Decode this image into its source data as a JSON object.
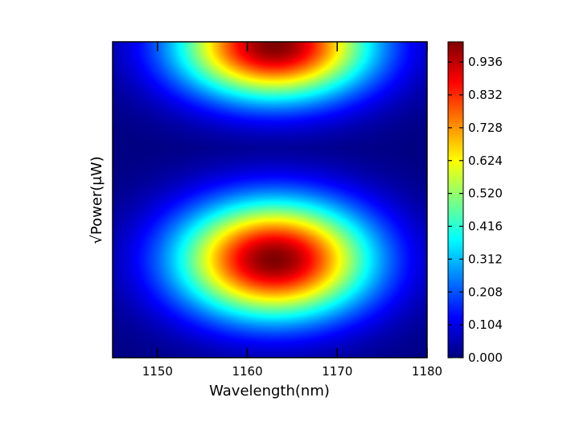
{
  "chart_data": {
    "type": "heatmap",
    "title": "",
    "xlabel": "Wavelength(nm)",
    "ylabel": "√Power(μW)",
    "xlim": [
      1145,
      1180
    ],
    "x_ticks": [
      1150,
      1160,
      1170,
      1180
    ],
    "x_tick_labels": [
      "1150",
      "1160",
      "1170",
      "1180"
    ],
    "y_ticks": [],
    "colormap": "jet",
    "value_range": [
      0.0,
      1.0
    ],
    "colorbar_ticks": [
      0.0,
      0.104,
      0.208,
      0.312,
      0.416,
      0.52,
      0.624,
      0.728,
      0.832,
      0.936
    ],
    "colorbar_tick_labels": [
      "0.000",
      "0.104",
      "0.208",
      "0.312",
      "0.416",
      "0.520",
      "0.624",
      "0.728",
      "0.832",
      "0.936"
    ],
    "grid": false,
    "peaks": [
      {
        "x": 1163,
        "y_fraction_from_bottom": 0.31,
        "value": 1.0,
        "x_width": 7.5,
        "y_width": 0.13
      },
      {
        "x": 1163,
        "y_fraction_from_bottom": 0.99,
        "value": 1.0,
        "x_width": 7.5,
        "y_width": 0.12
      }
    ]
  }
}
